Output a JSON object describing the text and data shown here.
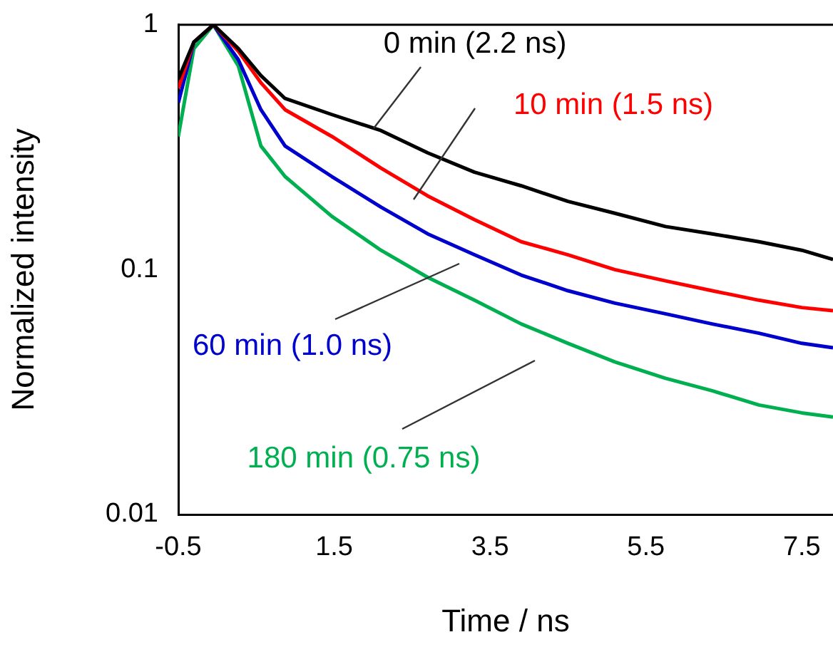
{
  "chart_data": {
    "type": "line",
    "xlabel": "Time / ns",
    "ylabel": "Normalized intensity",
    "log": "y",
    "xlim": [
      -0.5,
      7.9
    ],
    "ylim": [
      0.01,
      1
    ],
    "xticks": [
      -0.5,
      1.5,
      3.5,
      5.5,
      7.5
    ],
    "yticks": [
      0.01,
      0.1,
      1
    ],
    "grid": false,
    "legend": false,
    "marker": "none",
    "line_style": "solid",
    "x": [
      -0.5,
      -0.3,
      -0.05,
      0.27,
      0.56,
      0.87,
      1.47,
      2.1,
      2.7,
      3.3,
      3.9,
      4.5,
      5.1,
      5.75,
      6.35,
      6.95,
      7.5,
      7.9
    ],
    "series": [
      {
        "name": "0 min (2.2 ns)",
        "color": "#000000",
        "values": [
          0.6,
          0.85,
          1,
          0.8,
          0.62,
          0.5,
          0.43,
          0.37,
          0.3,
          0.25,
          0.22,
          0.19,
          0.17,
          0.15,
          0.14,
          0.13,
          0.12,
          0.11
        ]
      },
      {
        "name": "10 min (1.5 ns)",
        "color": "#ff0000",
        "values": [
          0.55,
          0.85,
          1,
          0.78,
          0.58,
          0.45,
          0.35,
          0.26,
          0.2,
          0.16,
          0.13,
          0.115,
          0.1,
          0.09,
          0.082,
          0.075,
          0.07,
          0.068
        ]
      },
      {
        "name": "60 min (1.0 ns)",
        "color": "#0000cc",
        "values": [
          0.48,
          0.85,
          1,
          0.72,
          0.45,
          0.32,
          0.24,
          0.18,
          0.14,
          0.115,
          0.095,
          0.082,
          0.073,
          0.066,
          0.06,
          0.055,
          0.05,
          0.048
        ]
      },
      {
        "name": "180 min (0.75 ns)",
        "color": "#00b050",
        "values": [
          0.35,
          0.8,
          1,
          0.68,
          0.32,
          0.24,
          0.165,
          0.12,
          0.093,
          0.075,
          0.06,
          0.05,
          0.042,
          0.036,
          0.032,
          0.028,
          0.026,
          0.025
        ]
      }
    ]
  }
}
